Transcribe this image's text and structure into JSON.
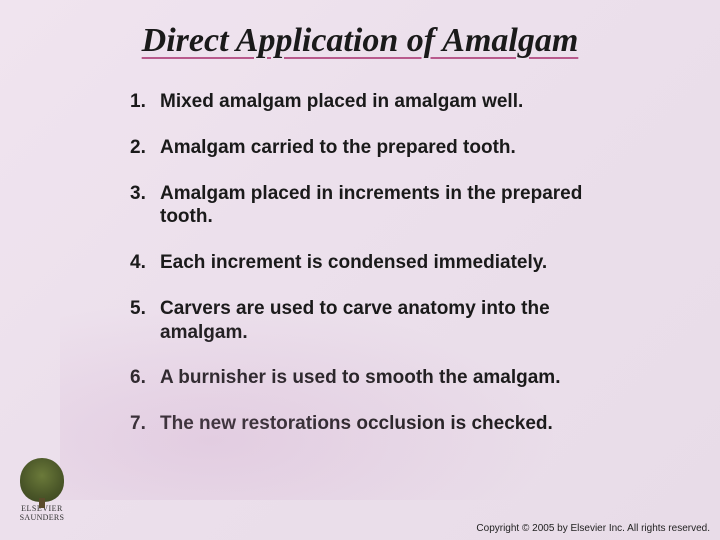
{
  "title": "Direct Application of Amalgam",
  "steps": [
    "Mixed amalgam placed in amalgam well.",
    "Amalgam carried to the prepared tooth.",
    "Amalgam placed in increments in the prepared tooth.",
    "Each increment is condensed immediately.",
    "Carvers are used to carve anatomy into the amalgam.",
    "A burnisher is used to smooth the amalgam.",
    "The new restorations occlusion is checked."
  ],
  "logo": {
    "line1": "ELSEVIER",
    "line2": "SAUNDERS"
  },
  "copyright": "Copyright © 2005 by Elsevier Inc. All rights reserved.",
  "style": {
    "title_fontsize": 34,
    "title_font": "Times New Roman italic bold",
    "title_underline_color": "#b85a8c",
    "body_fontsize": 19,
    "body_font": "Arial bold",
    "background_gradient": [
      "#f0e4ef",
      "#e8dce8"
    ],
    "text_color": "#1a1a1a",
    "copyright_fontsize": 10
  }
}
